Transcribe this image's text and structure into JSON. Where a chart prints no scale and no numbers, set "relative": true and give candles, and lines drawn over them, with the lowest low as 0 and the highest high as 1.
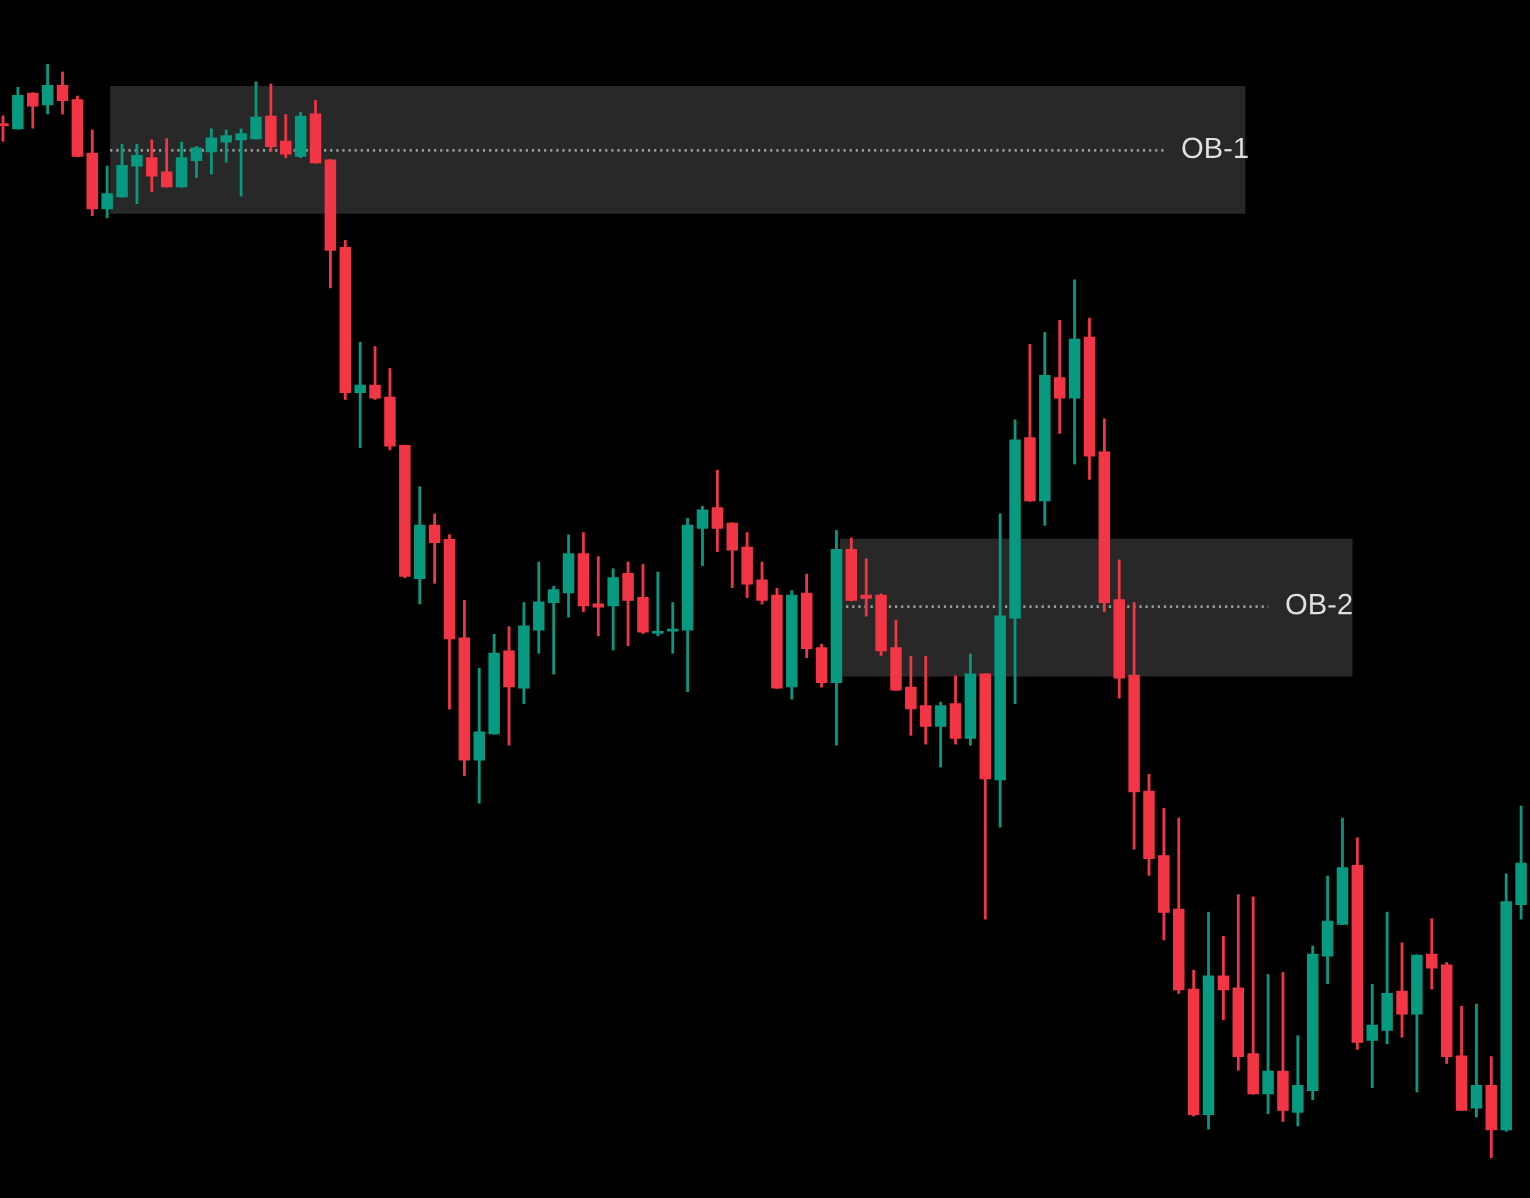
{
  "chart_data": {
    "type": "candlestick",
    "relative": true,
    "tick_labels": false,
    "categories": [
      null,
      null,
      null,
      null,
      null,
      null,
      null,
      null,
      null,
      null,
      null,
      null,
      null,
      null,
      null,
      null,
      null,
      null,
      null,
      null,
      null,
      null,
      null,
      null,
      null,
      null,
      null,
      null,
      null,
      null,
      null,
      null,
      null,
      null,
      null,
      null,
      null,
      null,
      null,
      null,
      null,
      null,
      null,
      null,
      null,
      null,
      null,
      null,
      null,
      null,
      null,
      null,
      null,
      null,
      null,
      null,
      null,
      null,
      null,
      null,
      null,
      null,
      null,
      null,
      null,
      null,
      null,
      null,
      null,
      null,
      null,
      null,
      null,
      null,
      null,
      null,
      null,
      null,
      null,
      null,
      null,
      null,
      null,
      null,
      null,
      null,
      null,
      null,
      null,
      null,
      null,
      null,
      null,
      null,
      null,
      null,
      null,
      null,
      null,
      null,
      null,
      null,
      null
    ],
    "ohlc": [
      [
        0.945,
        0.953,
        0.929,
        0.944
      ],
      [
        0.941,
        0.979,
        0.94,
        0.971
      ],
      [
        0.973,
        0.974,
        0.941,
        0.962
      ],
      [
        0.963,
        1.0,
        0.954,
        0.98
      ],
      [
        0.98,
        0.993,
        0.954,
        0.967
      ],
      [
        0.967,
        0.971,
        0.915,
        0.916
      ],
      [
        0.918,
        0.94,
        0.861,
        0.868
      ],
      [
        0.868,
        0.907,
        0.859,
        0.881
      ],
      [
        0.879,
        0.927,
        0.878,
        0.907
      ],
      [
        0.907,
        0.927,
        0.872,
        0.916
      ],
      [
        0.914,
        0.931,
        0.883,
        0.898
      ],
      [
        0.901,
        0.932,
        0.887,
        0.888
      ],
      [
        0.888,
        0.929,
        0.887,
        0.914
      ],
      [
        0.912,
        0.925,
        0.896,
        0.923
      ],
      [
        0.92,
        0.941,
        0.899,
        0.932
      ],
      [
        0.929,
        0.94,
        0.91,
        0.934
      ],
      [
        0.931,
        0.941,
        0.879,
        0.936
      ],
      [
        0.932,
        0.984,
        0.931,
        0.951
      ],
      [
        0.952,
        0.982,
        0.92,
        0.925
      ],
      [
        0.929,
        0.954,
        0.914,
        0.918
      ],
      [
        0.916,
        0.956,
        0.914,
        0.952
      ],
      [
        0.954,
        0.967,
        0.909,
        0.91
      ],
      [
        0.912,
        0.913,
        0.795,
        0.83
      ],
      [
        0.832,
        0.839,
        0.693,
        0.7
      ],
      [
        0.7,
        0.746,
        0.649,
        0.706
      ],
      [
        0.706,
        0.742,
        0.693,
        0.695
      ],
      [
        0.695,
        0.722,
        0.647,
        0.651
      ],
      [
        0.651,
        0.652,
        0.53,
        0.532
      ],
      [
        0.53,
        0.614,
        0.506,
        0.578
      ],
      [
        0.578,
        0.589,
        0.525,
        0.563
      ],
      [
        0.565,
        0.57,
        0.41,
        0.475
      ],
      [
        0.475,
        0.51,
        0.349,
        0.364
      ],
      [
        0.364,
        0.448,
        0.324,
        0.389
      ],
      [
        0.388,
        0.479,
        0.387,
        0.461
      ],
      [
        0.463,
        0.486,
        0.377,
        0.431
      ],
      [
        0.43,
        0.508,
        0.415,
        0.486
      ],
      [
        0.483,
        0.545,
        0.461,
        0.508
      ],
      [
        0.508,
        0.523,
        0.442,
        0.519
      ],
      [
        0.517,
        0.57,
        0.494,
        0.552
      ],
      [
        0.552,
        0.572,
        0.499,
        0.505
      ],
      [
        0.506,
        0.55,
        0.477,
        0.504
      ],
      [
        0.505,
        0.539,
        0.464,
        0.53
      ],
      [
        0.534,
        0.545,
        0.468,
        0.51
      ],
      [
        0.512,
        0.543,
        0.479,
        0.481
      ],
      [
        0.48,
        0.536,
        0.477,
        0.481
      ],
      [
        0.482,
        0.508,
        0.461,
        0.483
      ],
      [
        0.483,
        0.585,
        0.426,
        0.578
      ],
      [
        0.576,
        0.596,
        0.541,
        0.592
      ],
      [
        0.594,
        0.629,
        0.554,
        0.576
      ],
      [
        0.58,
        0.581,
        0.521,
        0.556
      ],
      [
        0.558,
        0.572,
        0.512,
        0.525
      ],
      [
        0.528,
        0.545,
        0.506,
        0.51
      ],
      [
        0.514,
        0.521,
        0.429,
        0.43
      ],
      [
        0.431,
        0.519,
        0.419,
        0.514
      ],
      [
        0.516,
        0.534,
        0.457,
        0.466
      ],
      [
        0.466,
        0.47,
        0.43,
        0.435
      ],
      [
        0.435,
        0.574,
        0.377,
        0.556
      ],
      [
        0.556,
        0.567,
        0.509,
        0.51
      ],
      [
        0.514,
        0.548,
        0.495,
        0.512
      ],
      [
        0.514,
        0.516,
        0.459,
        0.464
      ],
      [
        0.466,
        0.492,
        0.427,
        0.428
      ],
      [
        0.43,
        0.459,
        0.386,
        0.411
      ],
      [
        0.413,
        0.459,
        0.378,
        0.395
      ],
      [
        0.395,
        0.417,
        0.357,
        0.413
      ],
      [
        0.415,
        0.441,
        0.378,
        0.384
      ],
      [
        0.384,
        0.461,
        0.377,
        0.442
      ],
      [
        0.442,
        0.443,
        0.218,
        0.347
      ],
      [
        0.346,
        0.589,
        0.302,
        0.495
      ],
      [
        0.494,
        0.675,
        0.415,
        0.656
      ],
      [
        0.658,
        0.744,
        0.6,
        0.601
      ],
      [
        0.601,
        0.755,
        0.578,
        0.715
      ],
      [
        0.713,
        0.766,
        0.662,
        0.695
      ],
      [
        0.695,
        0.803,
        0.634,
        0.748
      ],
      [
        0.75,
        0.768,
        0.62,
        0.642
      ],
      [
        0.645,
        0.676,
        0.499,
        0.508
      ],
      [
        0.51,
        0.547,
        0.42,
        0.439
      ],
      [
        0.441,
        0.508,
        0.282,
        0.335
      ],
      [
        0.335,
        0.351,
        0.258,
        0.274
      ],
      [
        0.276,
        0.32,
        0.199,
        0.225
      ],
      [
        0.227,
        0.311,
        0.15,
        0.154
      ],
      [
        0.154,
        0.172,
        0.038,
        0.04
      ],
      [
        0.04,
        0.225,
        0.026,
        0.166
      ],
      [
        0.166,
        0.203,
        0.126,
        0.154
      ],
      [
        0.155,
        0.241,
        0.08,
        0.093
      ],
      [
        0.095,
        0.239,
        0.058,
        0.059
      ],
      [
        0.059,
        0.168,
        0.04,
        0.079
      ],
      [
        0.079,
        0.17,
        0.033,
        0.044
      ],
      [
        0.042,
        0.112,
        0.029,
        0.066
      ],
      [
        0.062,
        0.194,
        0.053,
        0.186
      ],
      [
        0.185,
        0.258,
        0.159,
        0.216
      ],
      [
        0.214,
        0.311,
        0.213,
        0.265
      ],
      [
        0.267,
        0.293,
        0.099,
        0.106
      ],
      [
        0.108,
        0.159,
        0.064,
        0.121
      ],
      [
        0.117,
        0.225,
        0.104,
        0.15
      ],
      [
        0.152,
        0.197,
        0.11,
        0.132
      ],
      [
        0.132,
        0.186,
        0.06,
        0.185
      ],
      [
        0.186,
        0.219,
        0.154,
        0.174
      ],
      [
        0.176,
        0.179,
        0.086,
        0.093
      ],
      [
        0.093,
        0.139,
        0.043,
        0.044
      ],
      [
        0.046,
        0.141,
        0.037,
        0.066
      ],
      [
        0.066,
        0.093,
        0.0,
        0.026
      ],
      [
        0.026,
        0.26,
        0.024,
        0.234
      ],
      [
        0.232,
        0.322,
        0.218,
        0.269
      ]
    ],
    "colors": [
      "#f23645",
      "#089981",
      "#f23645",
      "#089981",
      "#f23645",
      "#f23645",
      "#f23645",
      "#089981",
      "#089981",
      "#089981",
      "#f23645",
      "#f23645",
      "#089981",
      "#089981",
      "#089981",
      "#089981",
      "#089981",
      "#089981",
      "#f23645",
      "#f23645",
      "#089981",
      "#f23645",
      "#f23645",
      "#f23645",
      "#089981",
      "#f23645",
      "#f23645",
      "#f23645",
      "#089981",
      "#f23645",
      "#f23645",
      "#f23645",
      "#089981",
      "#089981",
      "#f23645",
      "#089981",
      "#089981",
      "#089981",
      "#089981",
      "#f23645",
      "#f23645",
      "#089981",
      "#f23645",
      "#f23645",
      "#089981",
      "#089981",
      "#089981",
      "#089981",
      "#f23645",
      "#f23645",
      "#f23645",
      "#f23645",
      "#f23645",
      "#089981",
      "#f23645",
      "#f23645",
      "#089981",
      "#f23645",
      "#f23645",
      "#f23645",
      "#f23645",
      "#f23645",
      "#f23645",
      "#089981",
      "#f23645",
      "#089981",
      "#f23645",
      "#089981",
      "#089981",
      "#f23645",
      "#089981",
      "#f23645",
      "#089981",
      "#f23645",
      "#f23645",
      "#f23645",
      "#f23645",
      "#f23645",
      "#f23645",
      "#f23645",
      "#f23645",
      "#089981",
      "#f23645",
      "#f23645",
      "#f23645",
      "#089981",
      "#f23645",
      "#089981",
      "#089981",
      "#089981",
      "#089981",
      "#f23645",
      "#089981",
      "#089981",
      "#f23645",
      "#089981",
      "#f23645",
      "#f23645",
      "#f23645",
      "#089981",
      "#f23645",
      "#089981",
      "#089981"
    ],
    "bands": [
      {
        "axis": "y",
        "from": 0.863,
        "to": 0.98,
        "color": "#282828"
      },
      {
        "axis": "y",
        "from": 0.44,
        "to": 0.566,
        "color": "#282828"
      }
    ],
    "ref_lines": [
      {
        "axis": "y",
        "value": 0.921,
        "label": "OB-1",
        "color": "#9a9a9a",
        "line_style": "dotted"
      },
      {
        "axis": "y",
        "value": 0.504,
        "label": "OB-2",
        "color": "#9a9a9a",
        "line_style": "dotted"
      }
    ]
  }
}
